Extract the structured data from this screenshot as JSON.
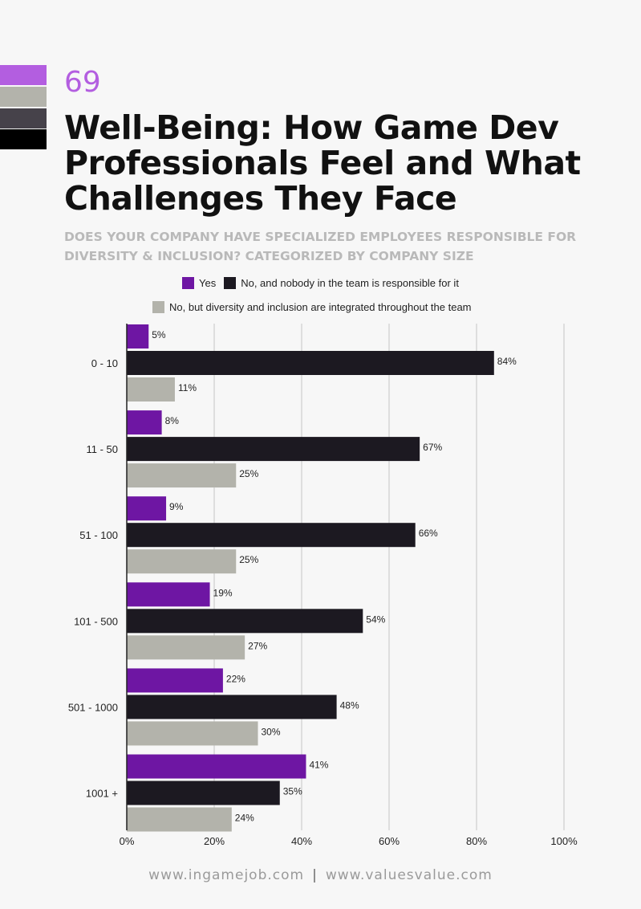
{
  "header": {
    "page_number": "69",
    "title": "Well-Being: How Game Dev Professionals Feel and What Challenges They Face",
    "subtitle": "DOES YOUR COMPANY HAVE SPECIALIZED EMPLOYEES RESPONSIBLE FOR DIVERSITY & INCLUSION? CATEGORIZED BY COMPANY SIZE"
  },
  "swatch_colors": [
    "#b35ee0",
    "#b3b3ab",
    "#46424a",
    "#000000"
  ],
  "chart_data": {
    "type": "bar",
    "orientation": "horizontal",
    "categories": [
      "0 - 10",
      "11 - 50",
      "51 - 100",
      "101 - 500",
      "501 - 1000",
      "1001 +"
    ],
    "series": [
      {
        "name": "Yes",
        "color": "#6e16a3",
        "values": [
          5,
          8,
          9,
          19,
          22,
          41
        ]
      },
      {
        "name": "No, and nobody in the team is responsible for it",
        "color": "#1c1921",
        "values": [
          84,
          67,
          66,
          54,
          48,
          35
        ]
      },
      {
        "name": "No, but diversity and inclusion are integrated throughout the team",
        "color": "#b3b3ab",
        "values": [
          11,
          25,
          25,
          27,
          30,
          24
        ]
      }
    ],
    "xlim": [
      0,
      100
    ],
    "x_ticks": [
      "0%",
      "20%",
      "40%",
      "60%",
      "80%",
      "100%"
    ],
    "value_suffix": "%",
    "grid": true,
    "legend_position": "top"
  },
  "footer": {
    "left": "www.ingamejob.com",
    "separator": "|",
    "right": "www.valuesvalue.com"
  }
}
